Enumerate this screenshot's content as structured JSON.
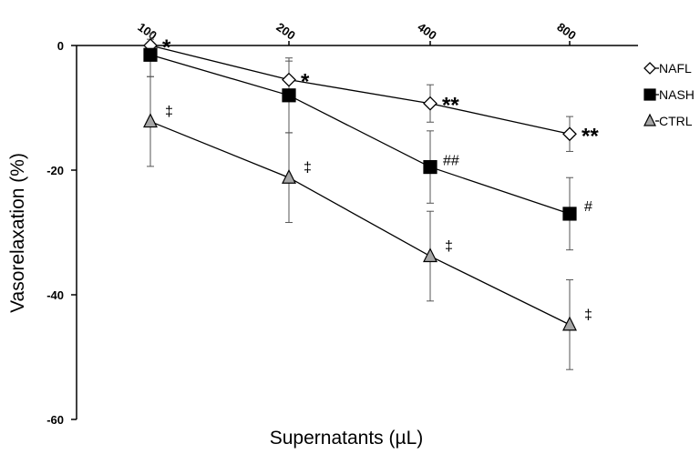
{
  "chart_data": {
    "type": "line",
    "title": "",
    "xlabel": "Supernatants (µL)",
    "ylabel": "Vasorelaxation (%)",
    "x": [
      100,
      200,
      400,
      800
    ],
    "x_tick_labels": [
      "100",
      "200",
      "400",
      "800"
    ],
    "x_axis_position": "top",
    "ylim": [
      -60,
      0
    ],
    "y_ticks": [
      0,
      -20,
      -40,
      -60
    ],
    "y_tick_labels": [
      "0",
      "-20",
      "-40",
      "-60"
    ],
    "grid": false,
    "legend_position": "right",
    "series": [
      {
        "name": "NAFL",
        "marker": "diamond",
        "fill": "#ffffff",
        "values": [
          0,
          -5.5,
          -9.3,
          -14.2
        ],
        "errors": [
          1.0,
          3.0,
          3.0,
          2.8
        ],
        "annotations": [
          "*",
          "*",
          "**",
          "**"
        ]
      },
      {
        "name": "NASH",
        "marker": "square",
        "fill": "#000000",
        "values": [
          -1.5,
          -8.0,
          -19.5,
          -27.0
        ],
        "errors": [
          3.5,
          6.0,
          5.8,
          5.8
        ],
        "annotations": [
          "",
          "",
          "##",
          "#"
        ]
      },
      {
        "name": "CTRL",
        "marker": "triangle",
        "fill": "#a6a6a6",
        "values": [
          -12.2,
          -21.2,
          -33.8,
          -44.8
        ],
        "errors": [
          7.2,
          7.2,
          7.2,
          7.2
        ],
        "annotations": [
          "‡",
          "‡",
          "‡",
          "‡"
        ]
      }
    ]
  }
}
